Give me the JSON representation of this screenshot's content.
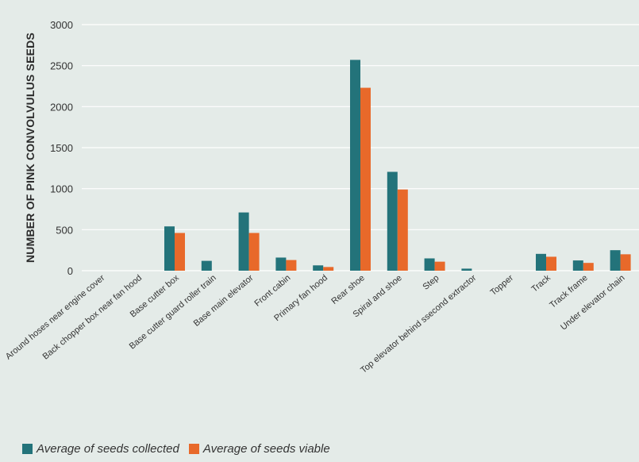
{
  "chart_data": {
    "type": "bar",
    "title": "",
    "xlabel": "",
    "ylabel": "NUMBER OF PINK CONVOLVULUS SEEDS",
    "ylim": [
      0,
      3000
    ],
    "yticks": [
      0,
      500,
      1000,
      1500,
      2000,
      2500,
      3000
    ],
    "grid": true,
    "legend_position": "bottom-left",
    "categories": [
      "Around hoses near engine cover",
      "Back chopper box near fan hood",
      "Base cutter box",
      "Base cutter guard roller train",
      "Base main elevator",
      "Front cabin",
      "Primary fan hood",
      "Rear shoe",
      "Spiral and shoe",
      "Step",
      "Top elevator behind ssecond extractor",
      "Topper",
      "Track",
      "Track frame",
      "Under elevator chain"
    ],
    "series": [
      {
        "name": "Average of seeds collected",
        "color": "#23737a",
        "values": [
          0,
          0,
          540,
          120,
          710,
          160,
          65,
          2570,
          1205,
          150,
          25,
          0,
          205,
          125,
          250
        ]
      },
      {
        "name": "Average of seeds viable",
        "color": "#e8692a",
        "values": [
          0,
          0,
          460,
          0,
          460,
          130,
          45,
          2230,
          990,
          110,
          0,
          0,
          170,
          95,
          200
        ]
      }
    ]
  }
}
